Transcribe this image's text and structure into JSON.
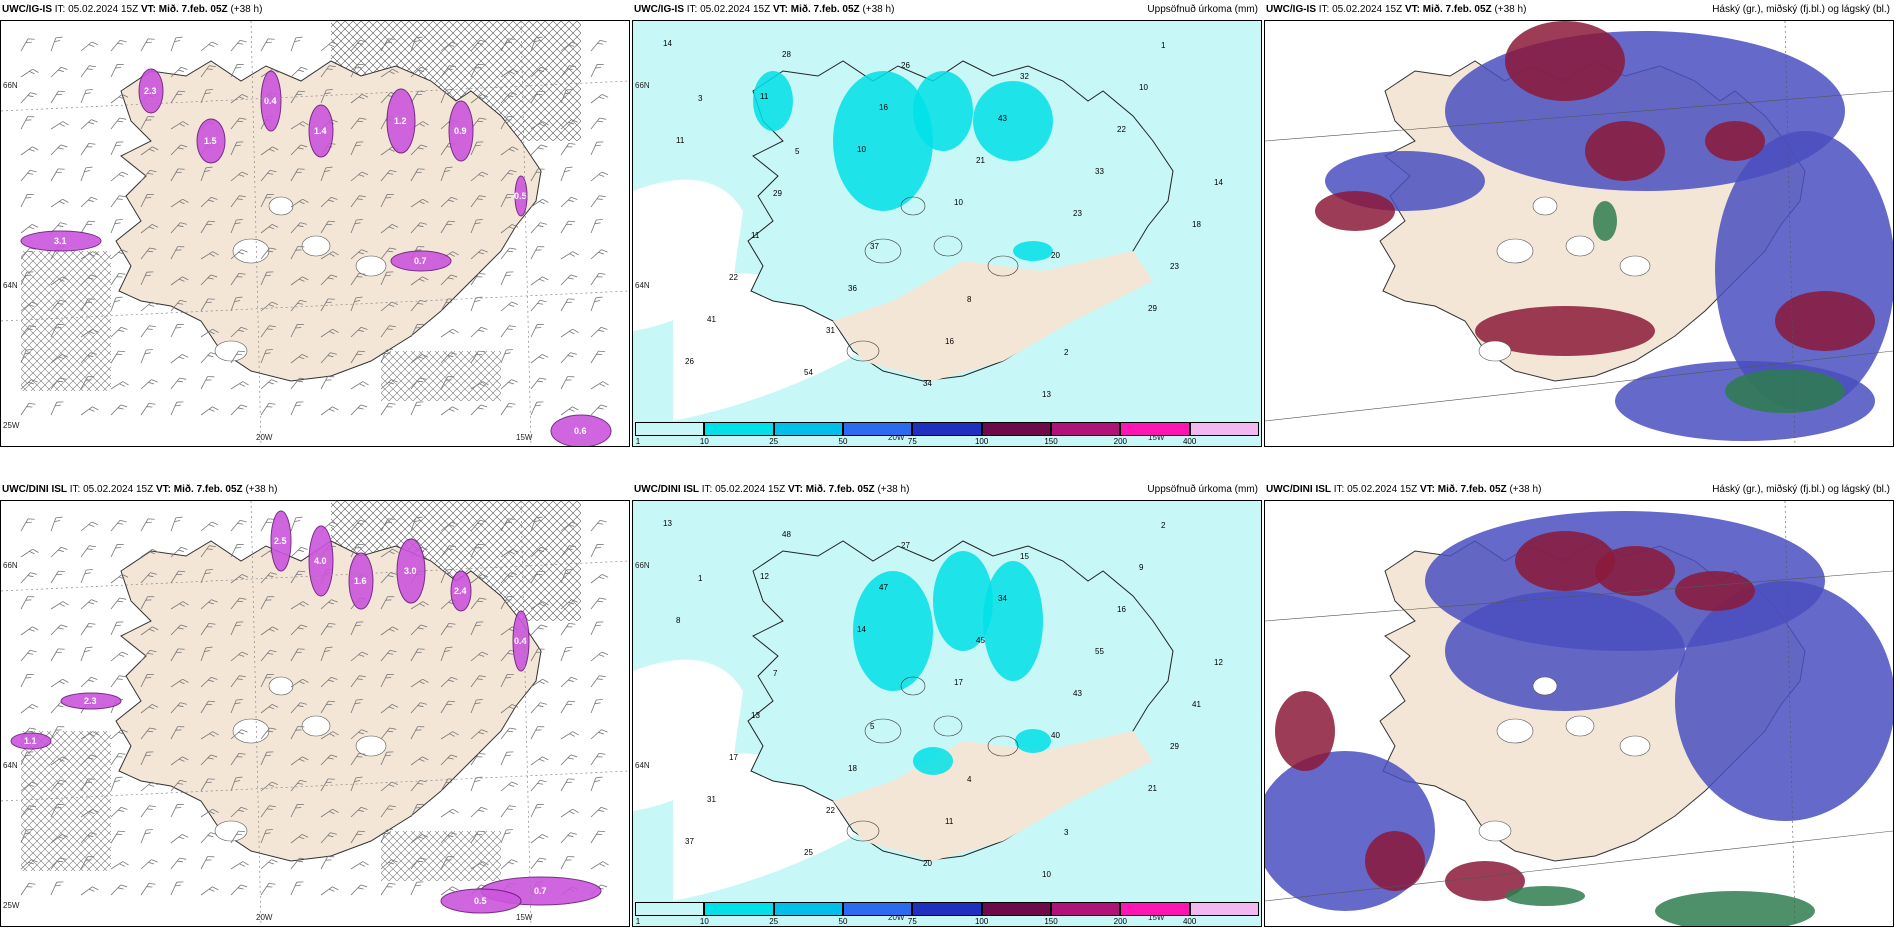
{
  "panels": [
    {
      "model": "UWC/IG-IS",
      "it_label": "IT:",
      "it": "05.02.2024 15Z",
      "vt_label": "VT:",
      "vt": "Mið. 7.feb. 05Z",
      "lead": "(+38 h)",
      "right_title": "",
      "type": "wind"
    },
    {
      "model": "UWC/IG-IS",
      "it_label": "IT:",
      "it": "05.02.2024 15Z",
      "vt_label": "VT:",
      "vt": "Mið. 7.feb. 05Z",
      "lead": "(+38 h)",
      "right_title": "Uppsöfnuð úrkoma (mm)",
      "type": "precip"
    },
    {
      "model": "UWC/IG-IS",
      "it_label": "IT:",
      "it": "05.02.2024 15Z",
      "vt_label": "VT:",
      "vt": "Mið. 7.feb. 05Z",
      "lead": "(+38 h)",
      "right_title": "Háský (gr.), miðský (fj.bl.) og lágský (bl.)",
      "type": "cloud"
    },
    {
      "model": "UWC/DINI ISL",
      "it_label": "IT:",
      "it": "05.02.2024 15Z",
      "vt_label": "VT:",
      "vt": "Mið. 7.feb. 05Z",
      "lead": "(+38 h)",
      "right_title": "",
      "type": "wind"
    },
    {
      "model": "UWC/DINI ISL",
      "it_label": "IT:",
      "it": "05.02.2024 15Z",
      "vt_label": "VT:",
      "vt": "Mið. 7.feb. 05Z",
      "lead": "(+38 h)",
      "right_title": "Uppsöfnuð úrkoma (mm)",
      "type": "precip"
    },
    {
      "model": "UWC/DINI ISL",
      "it_label": "IT:",
      "it": "05.02.2024 15Z",
      "vt_label": "VT:",
      "vt": "Mið. 7.feb. 05Z",
      "lead": "(+38 h)",
      "right_title": "Háský (gr.), miðský (fj.bl.) og lágský (bl.)",
      "type": "cloud"
    }
  ],
  "axis_labels": {
    "lat_66": "66N",
    "lat_64": "64N",
    "lon_25": "25W",
    "lon_20": "20W",
    "lon_15": "15W"
  },
  "colorbar": {
    "labels": [
      "1",
      "10",
      "25",
      "50",
      "75",
      "100",
      "150",
      "200",
      "400"
    ],
    "colors": [
      "#c8f7f7",
      "#00e0e8",
      "#00bfea",
      "#2a6bf0",
      "#1f2fbf",
      "#6d0a4a",
      "#b0127a",
      "#ff14b4",
      "#f4b8f0"
    ]
  },
  "precip_values_top": [
    "14",
    "11",
    "10",
    "10",
    "20",
    "29",
    "26",
    "28",
    "16",
    "21",
    "23",
    "23",
    "41",
    "54",
    "26",
    "43",
    "33",
    "18",
    "22",
    "31",
    "34",
    "32",
    "22",
    "14",
    "11",
    "36",
    "16",
    "13",
    "10",
    "11",
    "29",
    "37",
    "8",
    "2",
    "1",
    "3",
    "5"
  ],
  "precip_values_bottom": [
    "13",
    "12",
    "14",
    "17",
    "40",
    "21",
    "37",
    "48",
    "47",
    "45",
    "43",
    "29",
    "31",
    "25",
    "27",
    "34",
    "55",
    "41",
    "17",
    "22",
    "20",
    "15",
    "16",
    "12",
    "13",
    "18",
    "11",
    "10",
    "9",
    "8",
    "7",
    "5",
    "4",
    "3",
    "2",
    "1"
  ],
  "wind_values_top": [
    "2.3",
    "1.5",
    "0.4",
    "1.4",
    "1.2",
    "0.9",
    "3.1",
    "0.7",
    "0.6",
    "0.5"
  ],
  "wind_values_bottom": [
    "2.5",
    "4.0",
    "1.6",
    "3.0",
    "2.4",
    "0.4",
    "2.3",
    "1.1",
    "0.7",
    "0.5"
  ],
  "colors": {
    "land": "#f4e6d7",
    "sea_precip": "#c8f7f7",
    "cloud_high": "#8b1a3a",
    "cloud_mid": "#4a4fc0",
    "cloud_low": "#2e7d4f",
    "snow": "#cc55dd"
  }
}
